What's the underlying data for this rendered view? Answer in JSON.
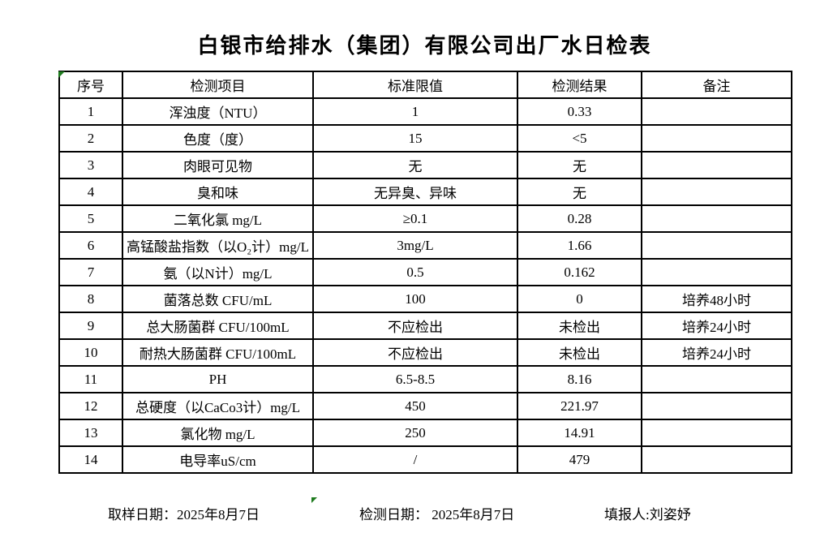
{
  "title": "白银市给排水（集团）有限公司出厂水日检表",
  "colors": {
    "border": "#000000",
    "text": "#000000",
    "indicator_green": "#1e7b1e",
    "background": "#ffffff"
  },
  "icons": {
    "cell_indicator": "green-corner-triangle"
  },
  "table": {
    "headers": [
      "序号",
      "检测项目",
      "标准限值",
      "检测结果",
      "备注"
    ],
    "rows": [
      {
        "no": "1",
        "item": "浑浊度（NTU）",
        "standard": "1",
        "result": "0.33",
        "note": ""
      },
      {
        "no": "2",
        "item": "色度（度）",
        "standard": "15",
        "result": "<5",
        "note": ""
      },
      {
        "no": "3",
        "item": "肉眼可见物",
        "standard": "无",
        "result": "无",
        "note": ""
      },
      {
        "no": "4",
        "item": "臭和味",
        "standard": "无异臭、异味",
        "result": "无",
        "note": ""
      },
      {
        "no": "5",
        "item": "二氧化氯 mg/L",
        "standard": "≥0.1",
        "result": "0.28",
        "note": ""
      },
      {
        "no": "6",
        "item": "高锰酸盐指数（以O₂计）mg/L",
        "standard": "3mg/L",
        "result": "1.66",
        "note": ""
      },
      {
        "no": "7",
        "item": "氨（以N计）mg/L",
        "standard": "0.5",
        "result": "0.162",
        "note": ""
      },
      {
        "no": "8",
        "item": "菌落总数 CFU/mL",
        "standard": "100",
        "result": "0",
        "note": "培养48小时"
      },
      {
        "no": "9",
        "item": "总大肠菌群 CFU/100mL",
        "standard": "不应检出",
        "result": "未检出",
        "note": "培养24小时"
      },
      {
        "no": "10",
        "item": "耐热大肠菌群 CFU/100mL",
        "standard": "不应检出",
        "result": "未检出",
        "note": "培养24小时"
      },
      {
        "no": "11",
        "item": "PH",
        "standard": "6.5-8.5",
        "result": "8.16",
        "note": ""
      },
      {
        "no": "12",
        "item": "总硬度（以CaCo3计）mg/L",
        "standard": "450",
        "result": "221.97",
        "note": ""
      },
      {
        "no": "13",
        "item": "氯化物 mg/L",
        "standard": "250",
        "result": "14.91",
        "note": ""
      },
      {
        "no": "14",
        "item": "电导率uS/cm",
        "standard": "/",
        "result": "479",
        "note": ""
      }
    ]
  },
  "footer": {
    "sampling_date": "取样日期：2025年8月7日",
    "testing_date": "检测日期： 2025年8月7日",
    "reporter": "填报人:刘姿妤"
  }
}
